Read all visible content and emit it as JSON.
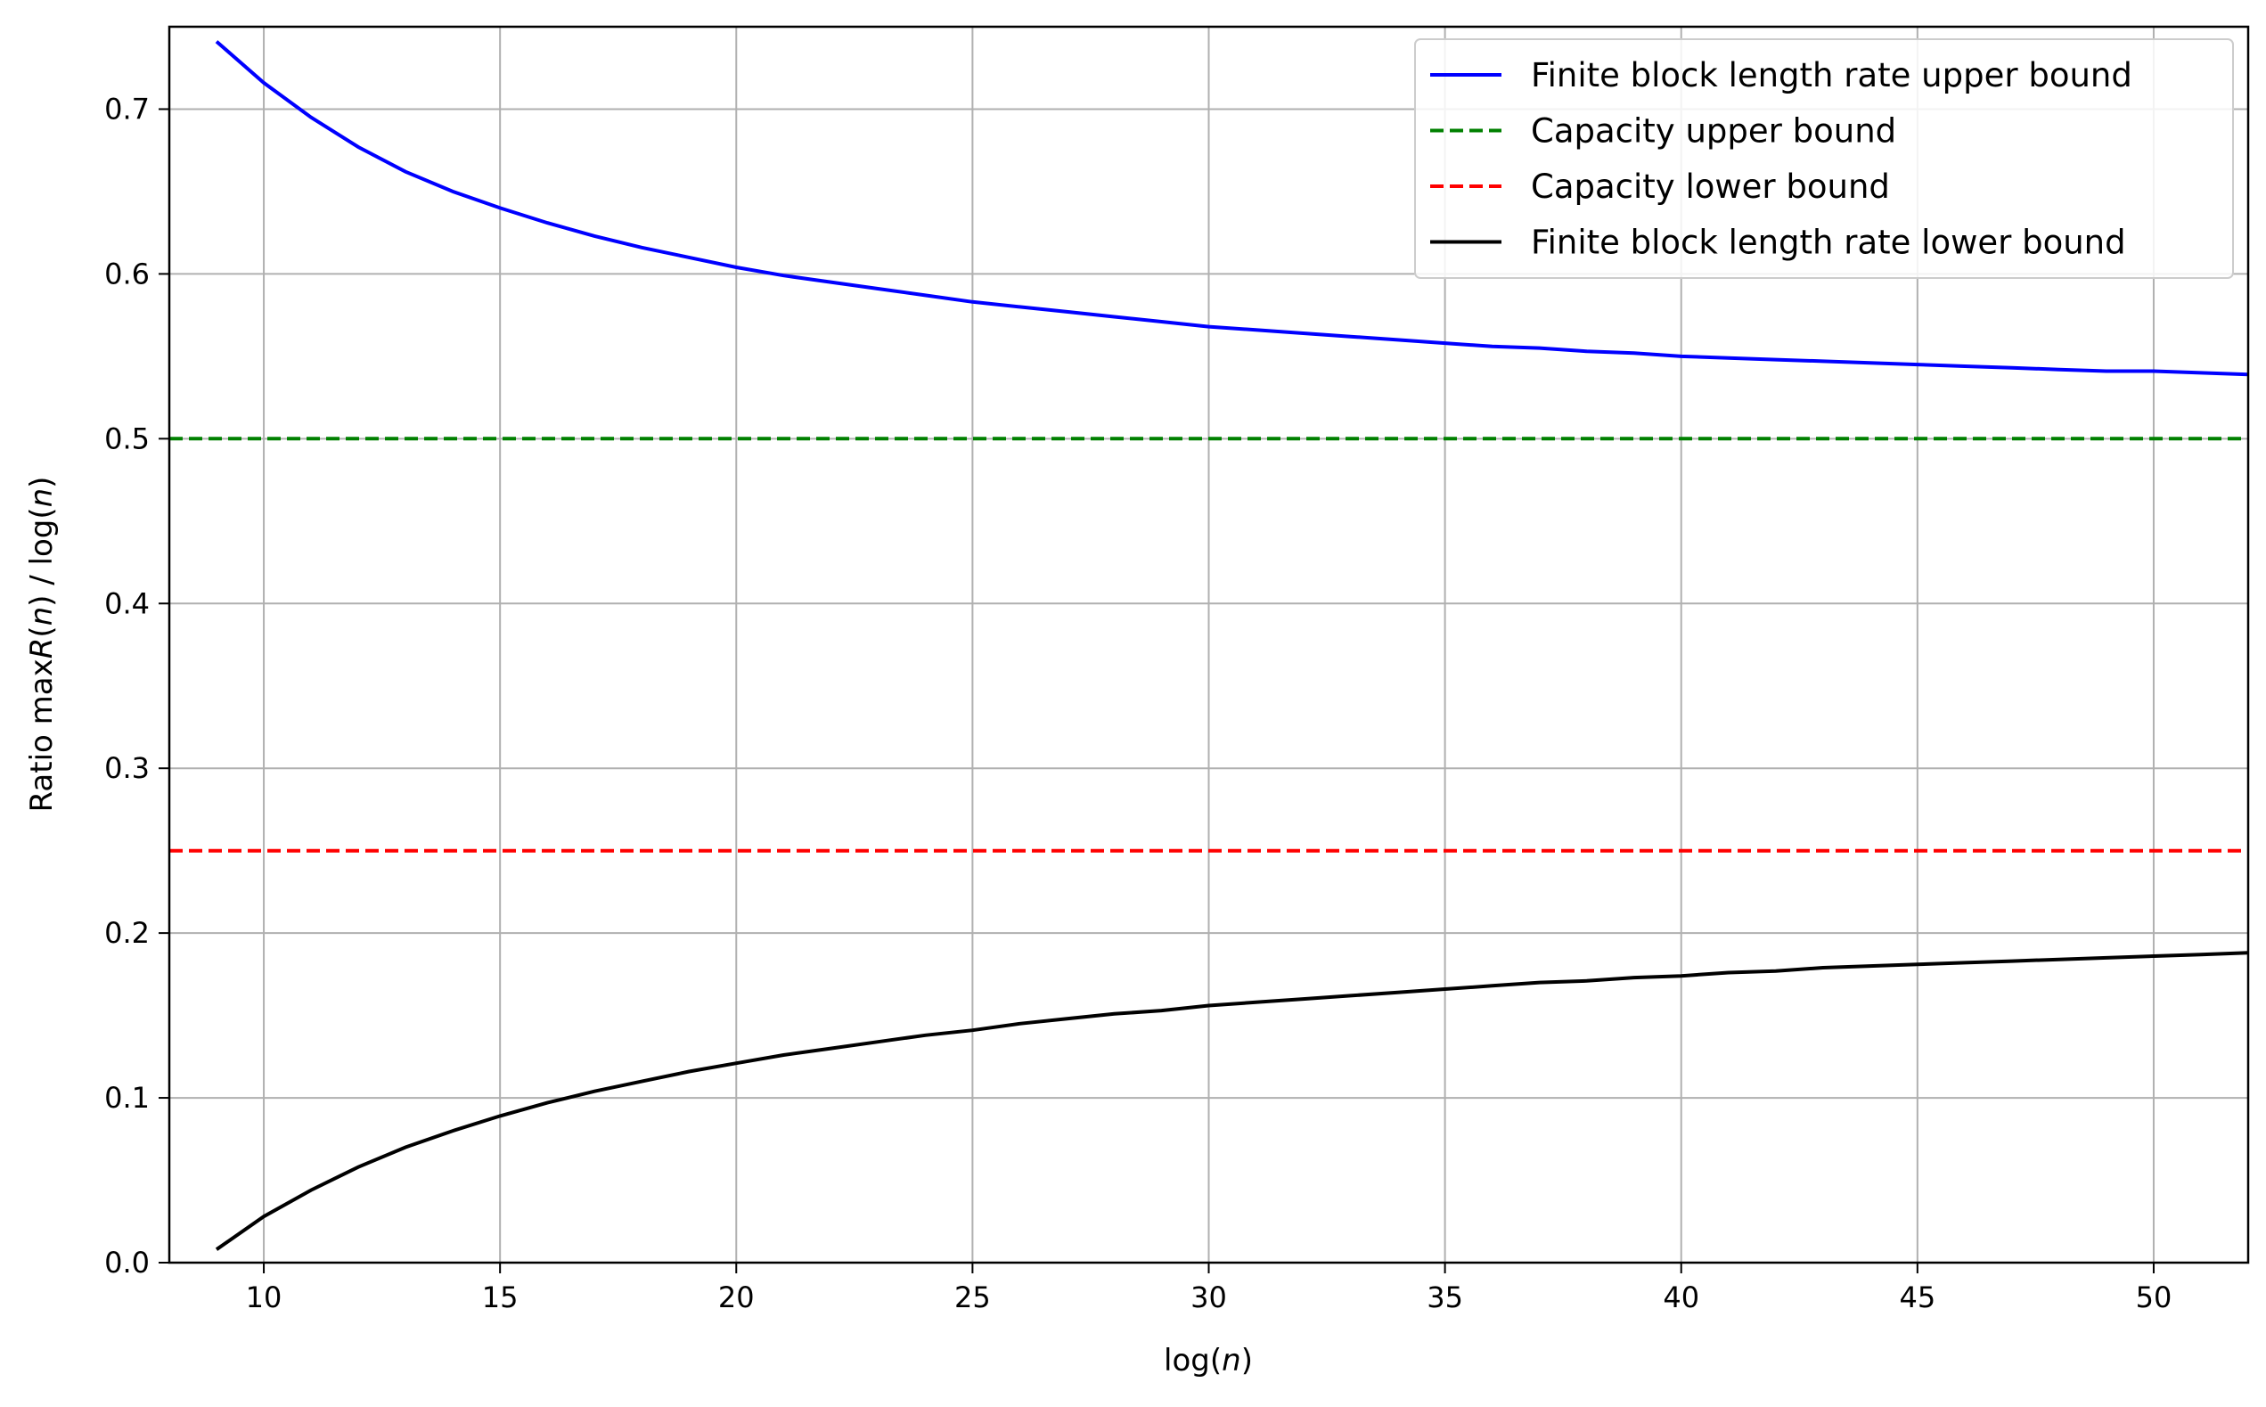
{
  "chart_data": {
    "type": "line",
    "xlabel": "log(n)",
    "ylabel": "Ratio maxR(n) / log(n)",
    "xlim": [
      8,
      52
    ],
    "ylim": [
      0,
      0.75
    ],
    "xticks": [
      10,
      15,
      20,
      25,
      30,
      35,
      40,
      45,
      50
    ],
    "yticks": [
      0.0,
      0.1,
      0.2,
      0.3,
      0.4,
      0.5,
      0.6,
      0.7
    ],
    "xtick_labels": [
      "10",
      "15",
      "20",
      "25",
      "30",
      "35",
      "40",
      "45",
      "50"
    ],
    "ytick_labels": [
      "0.0",
      "0.1",
      "0.2",
      "0.3",
      "0.4",
      "0.5",
      "0.6",
      "0.7"
    ],
    "grid": true,
    "legend_position": "top-right",
    "x": [
      9,
      10,
      11,
      12,
      13,
      14,
      15,
      16,
      17,
      18,
      19,
      20,
      21,
      22,
      23,
      24,
      25,
      26,
      27,
      28,
      29,
      30,
      31,
      32,
      33,
      34,
      35,
      36,
      37,
      38,
      39,
      40,
      41,
      42,
      43,
      44,
      45,
      46,
      47,
      48,
      49,
      50,
      51,
      52
    ],
    "series": [
      {
        "name": "Finite block length rate upper bound",
        "color": "#0000ff",
        "style": "solid",
        "values": [
          0.741,
          0.716,
          0.695,
          0.677,
          0.662,
          0.65,
          0.64,
          0.631,
          0.623,
          0.616,
          0.61,
          0.604,
          0.599,
          0.595,
          0.591,
          0.587,
          0.583,
          0.58,
          0.577,
          0.574,
          0.571,
          0.568,
          0.566,
          0.564,
          0.562,
          0.56,
          0.558,
          0.556,
          0.555,
          0.553,
          0.552,
          0.55,
          0.549,
          0.548,
          0.547,
          0.546,
          0.545,
          0.544,
          0.543,
          0.542,
          0.541,
          0.541,
          0.54,
          0.539
        ]
      },
      {
        "name": "Capacity upper bound",
        "color": "#008000",
        "style": "dashed",
        "values": [
          0.5,
          0.5,
          0.5,
          0.5,
          0.5,
          0.5,
          0.5,
          0.5,
          0.5,
          0.5,
          0.5,
          0.5,
          0.5,
          0.5,
          0.5,
          0.5,
          0.5,
          0.5,
          0.5,
          0.5,
          0.5,
          0.5,
          0.5,
          0.5,
          0.5,
          0.5,
          0.5,
          0.5,
          0.5,
          0.5,
          0.5,
          0.5,
          0.5,
          0.5,
          0.5,
          0.5,
          0.5,
          0.5,
          0.5,
          0.5,
          0.5,
          0.5,
          0.5,
          0.5
        ]
      },
      {
        "name": "Capacity lower bound",
        "color": "#ff0000",
        "style": "dashed",
        "values": [
          0.25,
          0.25,
          0.25,
          0.25,
          0.25,
          0.25,
          0.25,
          0.25,
          0.25,
          0.25,
          0.25,
          0.25,
          0.25,
          0.25,
          0.25,
          0.25,
          0.25,
          0.25,
          0.25,
          0.25,
          0.25,
          0.25,
          0.25,
          0.25,
          0.25,
          0.25,
          0.25,
          0.25,
          0.25,
          0.25,
          0.25,
          0.25,
          0.25,
          0.25,
          0.25,
          0.25,
          0.25,
          0.25,
          0.25,
          0.25,
          0.25,
          0.25,
          0.25,
          0.25
        ]
      },
      {
        "name": "Finite block length rate lower bound",
        "color": "#000000",
        "style": "solid",
        "values": [
          0.008,
          0.028,
          0.044,
          0.058,
          0.07,
          0.08,
          0.089,
          0.097,
          0.104,
          0.11,
          0.116,
          0.121,
          0.126,
          0.13,
          0.134,
          0.138,
          0.141,
          0.145,
          0.148,
          0.151,
          0.153,
          0.156,
          0.158,
          0.16,
          0.162,
          0.164,
          0.166,
          0.168,
          0.17,
          0.171,
          0.173,
          0.174,
          0.176,
          0.177,
          0.179,
          0.18,
          0.181,
          0.182,
          0.183,
          0.184,
          0.185,
          0.186,
          0.187,
          0.188
        ]
      }
    ]
  }
}
